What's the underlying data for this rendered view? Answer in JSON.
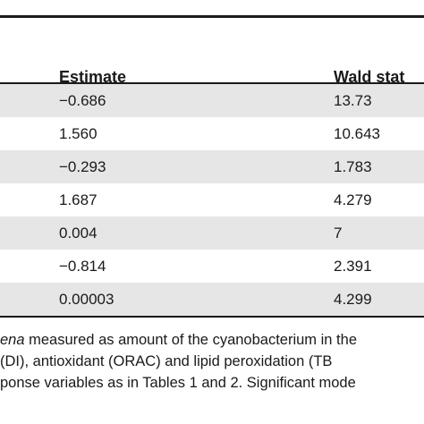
{
  "table": {
    "columns": [
      "Estimate",
      "Wald stat"
    ],
    "rows": [
      {
        "estimate": "−0.686",
        "wald": "13.73"
      },
      {
        "estimate": "1.560",
        "wald": "10.643"
      },
      {
        "estimate": "−0.293",
        "wald": "1.783"
      },
      {
        "estimate": "1.687",
        "wald": "4.279"
      },
      {
        "estimate": "0.004",
        "wald": "7"
      },
      {
        "estimate": "−0.814",
        "wald": "2.391"
      },
      {
        "estimate": "0.00003",
        "wald": "4.299"
      }
    ]
  },
  "caption": {
    "line1_italic": "ena",
    "line1_rest": " measured as amount of the cyanobacterium in the",
    "line2": " (DI), antioxidant (ORAC) and lipid peroxidation (TB",
    "line3": "ponse variables as in Tables 1 and 2. Significant mode"
  }
}
